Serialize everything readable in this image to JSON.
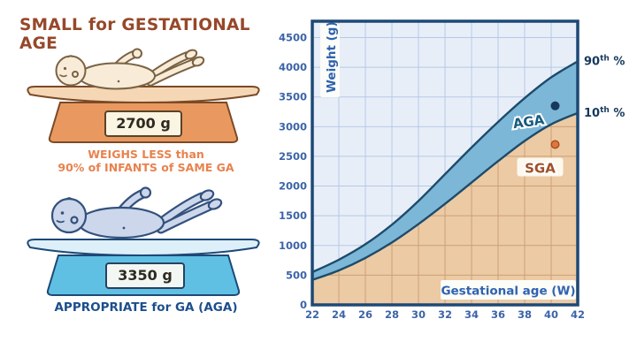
{
  "title": "SMALL for GESTATIONAL AGE",
  "sga_panel": {
    "weight": "2700 g",
    "caption_line1": "WEIGHS LESS than",
    "caption_line2": "90% of INFANTS of SAME GA"
  },
  "aga_panel": {
    "weight": "3350 g",
    "caption": "APPROPRIATE for GA (AGA)"
  },
  "colors": {
    "accent_orange": "#e8824e",
    "accent_brown": "#96482a",
    "accent_blue": "#1d4e8c",
    "chart_bg": "#e8eef8",
    "grid_blue": "#b5c9e6",
    "grid_tan": "#cba077",
    "band_blue": "#7db7d7",
    "sga_tan": "#eccaa4",
    "curve_navy": "#1d4b6b",
    "chart_border": "#1d4976",
    "label_box": "#fcfcf8"
  },
  "chart_data": {
    "type": "area",
    "title": "",
    "xlabel": "Gestational age (W)",
    "ylabel": "Weight (g)",
    "xlim": [
      22,
      42
    ],
    "ylim": [
      0,
      4775
    ],
    "xticks": [
      22,
      24,
      26,
      28,
      30,
      32,
      34,
      36,
      38,
      40,
      42
    ],
    "yticks": [
      0,
      500,
      1000,
      1500,
      2000,
      2500,
      3000,
      3500,
      4000,
      4500
    ],
    "grid": true,
    "x": [
      22,
      24,
      26,
      28,
      30,
      32,
      34,
      36,
      38,
      40,
      42
    ],
    "series": [
      {
        "name": "90th percentile",
        "values": [
          550,
          760,
          1020,
          1350,
          1750,
          2200,
          2650,
          3080,
          3480,
          3830,
          4100
        ]
      },
      {
        "name": "10th percentile",
        "values": [
          420,
          580,
          790,
          1050,
          1360,
          1700,
          2060,
          2420,
          2760,
          3040,
          3230
        ]
      }
    ],
    "points": [
      {
        "label": "AGA",
        "week": 40.3,
        "weight": 3350,
        "color": "#16395c",
        "ring": "#16395c",
        "label_color": "#175a7d",
        "label_box": false
      },
      {
        "label": "SGA",
        "week": 40.3,
        "weight": 2700,
        "color": "#e0763c",
        "ring": "#a84c1e",
        "label_color": "#a0502a",
        "label_box": true
      }
    ],
    "right_labels": [
      {
        "num": "90",
        "sup": "th",
        "suffix": " %",
        "value": 4100
      },
      {
        "num": "10",
        "sup": "th",
        "suffix": " %",
        "value": 3230
      }
    ]
  }
}
